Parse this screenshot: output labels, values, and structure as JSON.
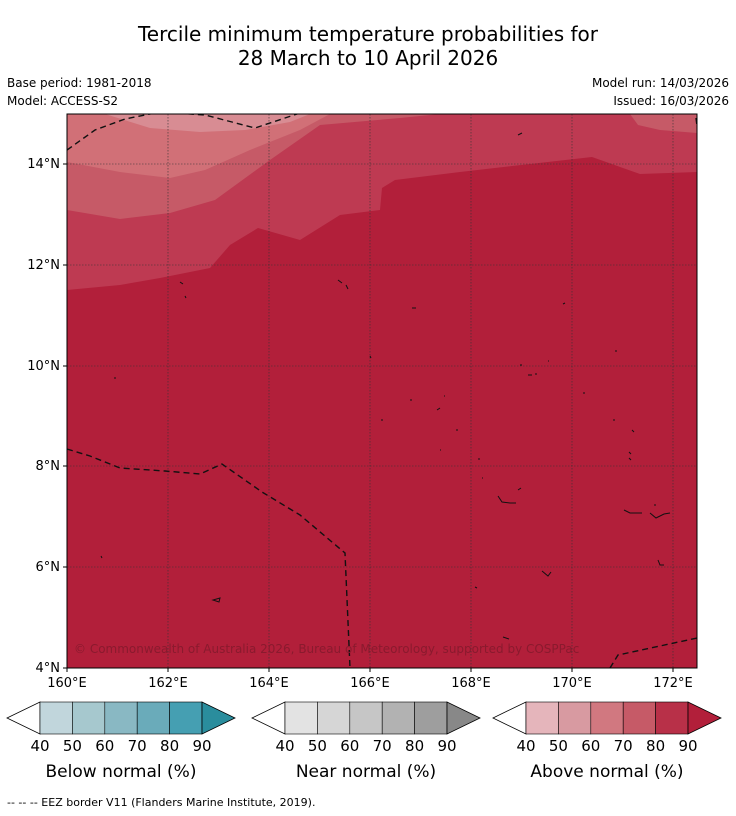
{
  "title": {
    "line1": "Tercile minimum temperature probabilities for",
    "line2": "28 March to 10 April 2026"
  },
  "meta": {
    "base_period": "Base period: 1981-2018",
    "model": "Model: ACCESS-S2",
    "model_run": "Model run: 14/03/2026",
    "issued": "Issued: 16/03/2026"
  },
  "map": {
    "lon_ticks": [
      "160°E",
      "162°E",
      "164°E",
      "166°E",
      "168°E",
      "170°E",
      "172°E"
    ],
    "lat_ticks": [
      "14°N",
      "12°N",
      "10°N",
      "8°N",
      "6°N",
      "4°N"
    ],
    "copyright": "© Commonwealth of Australia 2026, Bureau of Meteorology, supported by COSPPac",
    "colors": {
      "above_90": "#b21f3a",
      "above_80": "#be3a52",
      "above_70": "#c65a67",
      "above_60": "#d17077",
      "above_50": "#d88c93"
    }
  },
  "colorbars": [
    {
      "label": "Below normal (%)",
      "ticks": [
        "40",
        "50",
        "60",
        "70",
        "80",
        "90"
      ],
      "colors": [
        "#c1d6dc",
        "#a6c8ce",
        "#89b8c3",
        "#6aabba",
        "#459fb2",
        "#2a8d9d"
      ]
    },
    {
      "label": "Near normal (%)",
      "ticks": [
        "40",
        "50",
        "60",
        "70",
        "80",
        "90"
      ],
      "colors": [
        "#e3e3e3",
        "#d6d6d6",
        "#c6c6c6",
        "#b2b2b2",
        "#9e9e9e",
        "#888888"
      ]
    },
    {
      "label": "Above normal (%)",
      "ticks": [
        "40",
        "50",
        "60",
        "70",
        "80",
        "90"
      ],
      "colors": [
        "#e5b5bb",
        "#d89aa1",
        "#d17880",
        "#c65a67",
        "#b83048",
        "#b21f3a"
      ]
    }
  ],
  "footer": "--  --  -- EEZ border V11 (Flanders Marine Institute, 2019)."
}
